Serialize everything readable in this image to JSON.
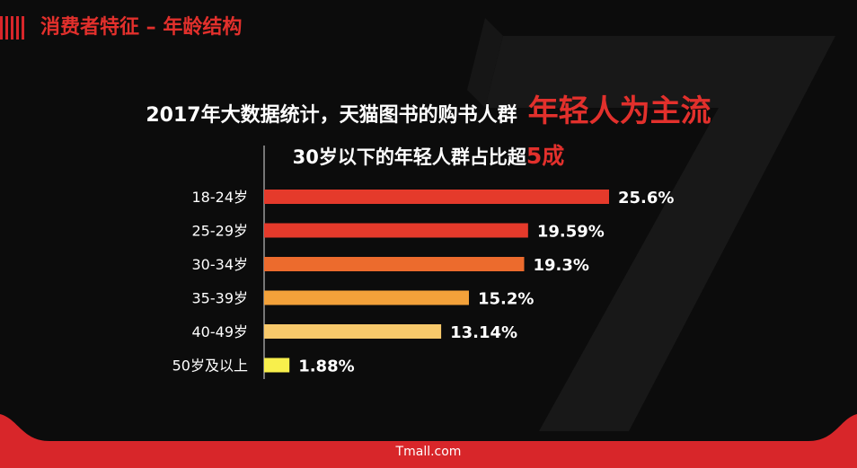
{
  "header": {
    "title": "消费者特征 – 年龄结构"
  },
  "headline": {
    "text": "2017年大数据统计，天猫图书的购书人群",
    "emphasis": "年轻人为主流"
  },
  "subline": {
    "text": "30岁以下的年轻人群占比超",
    "emphasis": "5成"
  },
  "footer": {
    "text": "Tmall.com"
  },
  "colors": {
    "accent": "#e2302c",
    "background": "#0c0c0c"
  },
  "chart_data": {
    "type": "bar",
    "orientation": "horizontal",
    "title": "30岁以下的年轻人群占比超5成",
    "xlabel": "",
    "ylabel": "",
    "xlim": [
      0,
      25.6
    ],
    "grid": false,
    "categories": [
      "18-24岁",
      "25-29岁",
      "30-34岁",
      "35-39岁",
      "40-49岁",
      "50岁及以上"
    ],
    "values": [
      25.6,
      19.59,
      19.3,
      15.2,
      13.14,
      1.88
    ],
    "labels": [
      "25.6%",
      "19.59%",
      "19.3%",
      "15.2%",
      "13.14%",
      "1.88%"
    ],
    "colors": [
      "#e53a2b",
      "#e53a2b",
      "#ec6b2d",
      "#f3a13a",
      "#f8c96b",
      "#f8ef4c"
    ]
  }
}
